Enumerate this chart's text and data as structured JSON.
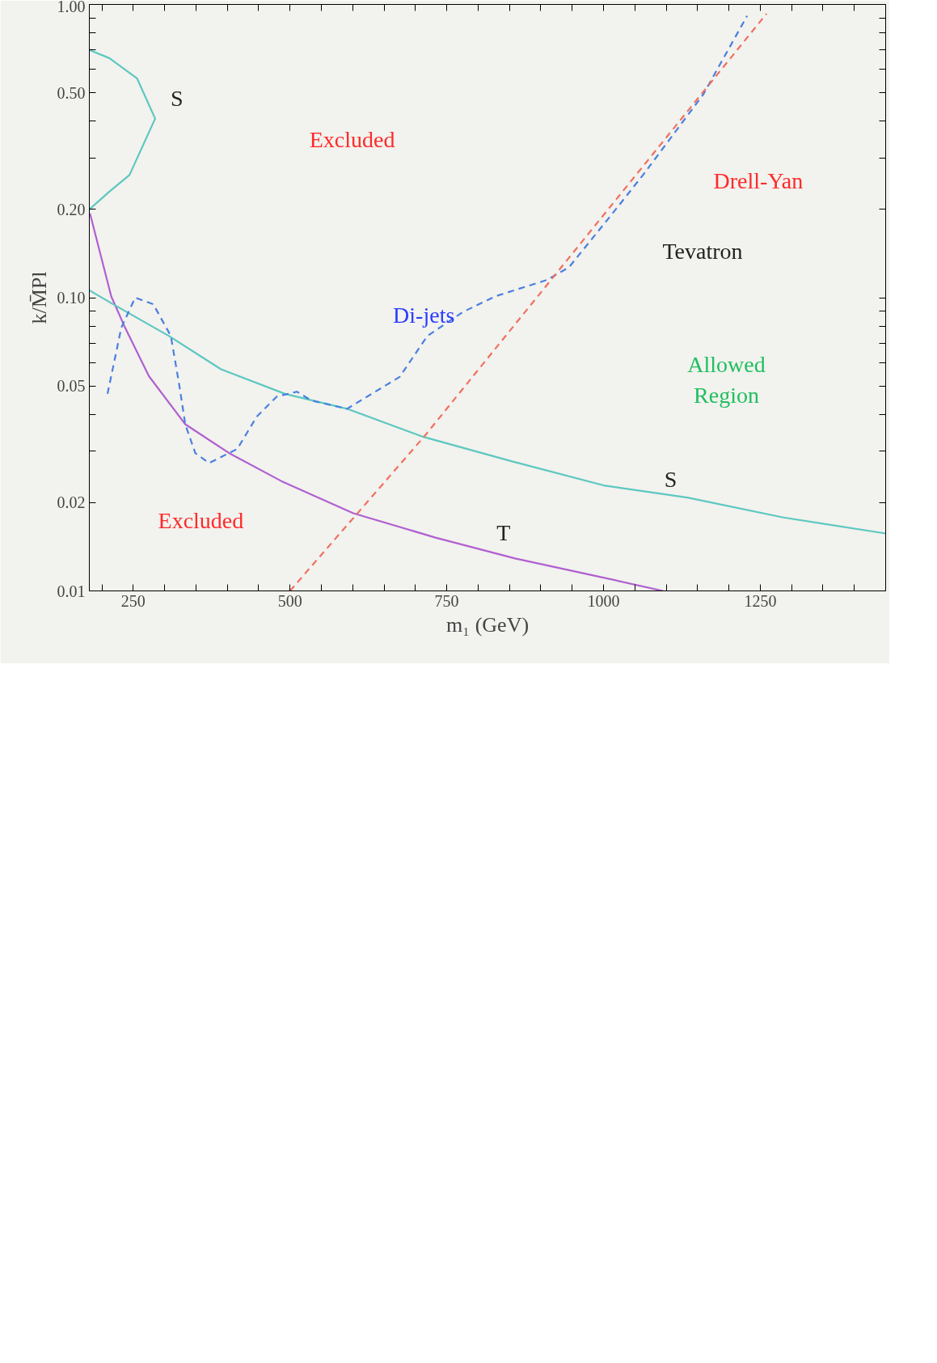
{
  "chart_data": {
    "type": "line",
    "xlabel": "m₁ (GeV)",
    "ylabel": "k/M̄Pl",
    "log": "y",
    "xlim": [
      180,
      1450
    ],
    "ylim": [
      0.01,
      1.0
    ],
    "xticks": [
      {
        "value": 200,
        "label": null
      },
      250,
      {
        "value": 300,
        "label": null
      },
      {
        "value": 350,
        "label": null
      },
      {
        "value": 400,
        "label": null
      },
      {
        "value": 450,
        "label": null
      },
      500,
      {
        "value": 550,
        "label": null
      },
      {
        "value": 600,
        "label": null
      },
      {
        "value": 650,
        "label": null
      },
      {
        "value": 700,
        "label": null
      },
      750,
      {
        "value": 800,
        "label": null
      },
      {
        "value": 850,
        "label": null
      },
      {
        "value": 900,
        "label": null
      },
      {
        "value": 950,
        "label": null
      },
      1000,
      {
        "value": 1050,
        "label": null
      },
      {
        "value": 1100,
        "label": null
      },
      {
        "value": 1150,
        "label": null
      },
      {
        "value": 1200,
        "label": null
      },
      1250,
      {
        "value": 1300,
        "label": null
      },
      {
        "value": 1350,
        "label": null
      },
      {
        "value": 1400,
        "label": null
      }
    ],
    "yticks": [
      0.01,
      0.02,
      {
        "value": 0.03,
        "label": null
      },
      {
        "value": 0.04,
        "label": null
      },
      0.05,
      {
        "value": 0.06,
        "label": null
      },
      {
        "value": 0.07,
        "label": null
      },
      {
        "value": 0.08,
        "label": null
      },
      {
        "value": 0.09,
        "label": null
      },
      {
        "value": 0.1,
        "label": "0.10"
      },
      {
        "value": 0.2,
        "label": "0.20"
      },
      {
        "value": 0.3,
        "label": null
      },
      {
        "value": 0.4,
        "label": null
      },
      {
        "value": 0.5,
        "label": "0.50"
      },
      {
        "value": 0.6,
        "label": null
      },
      {
        "value": 0.7,
        "label": null
      },
      {
        "value": 0.8,
        "label": null
      },
      {
        "value": 0.9,
        "label": null
      },
      {
        "value": 1.0,
        "label": "1.00"
      }
    ],
    "grid": false,
    "series": [
      {
        "color": "#b060d0",
        "line_style": "solid",
        "x": [
          181,
          215,
          237,
          275,
          333,
          403,
          486,
          601,
          732,
          859,
          1000,
          1095
        ],
        "values": [
          0.194,
          0.101,
          0.079,
          0.054,
          0.037,
          0.0295,
          0.0237,
          0.0184,
          0.0152,
          0.0129,
          0.0111,
          0.01
        ]
      },
      {
        "color": "#5cc8c0",
        "line_style": "solid",
        "x": [
          180,
          218,
          307,
          390,
          492,
          591,
          713,
          853,
          1000,
          1134,
          1287,
          1450
        ],
        "values": [
          0.106,
          0.095,
          0.074,
          0.057,
          0.047,
          0.0418,
          0.0335,
          0.0277,
          0.0229,
          0.0208,
          0.0178,
          0.0157
        ]
      },
      {
        "color": "#5cc8c0",
        "line_style": "solid",
        "x": [
          180,
          212,
          244,
          285,
          256,
          212,
          180
        ],
        "values": [
          0.2,
          0.23,
          0.262,
          0.408,
          0.56,
          0.656,
          0.7
        ]
      },
      {
        "color": "#4a7fe0",
        "line_style": "dashed",
        "x": [
          209,
          231,
          253,
          282,
          310,
          323,
          333,
          349,
          371,
          416,
          447,
          479,
          511,
          534,
          591,
          675,
          719,
          776,
          827,
          910,
          945,
          1012,
          1063,
          1159,
          1229
        ],
        "values": [
          0.047,
          0.079,
          0.1,
          0.095,
          0.074,
          0.051,
          0.037,
          0.0295,
          0.0273,
          0.0305,
          0.0393,
          0.046,
          0.0478,
          0.0446,
          0.0418,
          0.0537,
          0.074,
          0.0894,
          0.101,
          0.115,
          0.127,
          0.191,
          0.262,
          0.493,
          0.914
        ]
      },
      {
        "color": "#f07060",
        "line_style": "dashed",
        "x": [
          500,
          716,
          1260
        ],
        "values": [
          0.01,
          0.034,
          0.93
        ]
      }
    ],
    "annotations": [
      "S",
      "Excluded",
      "Excluded",
      "Di-jets",
      "T",
      "S",
      "Allowed\nRegion",
      "Tevatron",
      "Drell-Yan"
    ]
  }
}
